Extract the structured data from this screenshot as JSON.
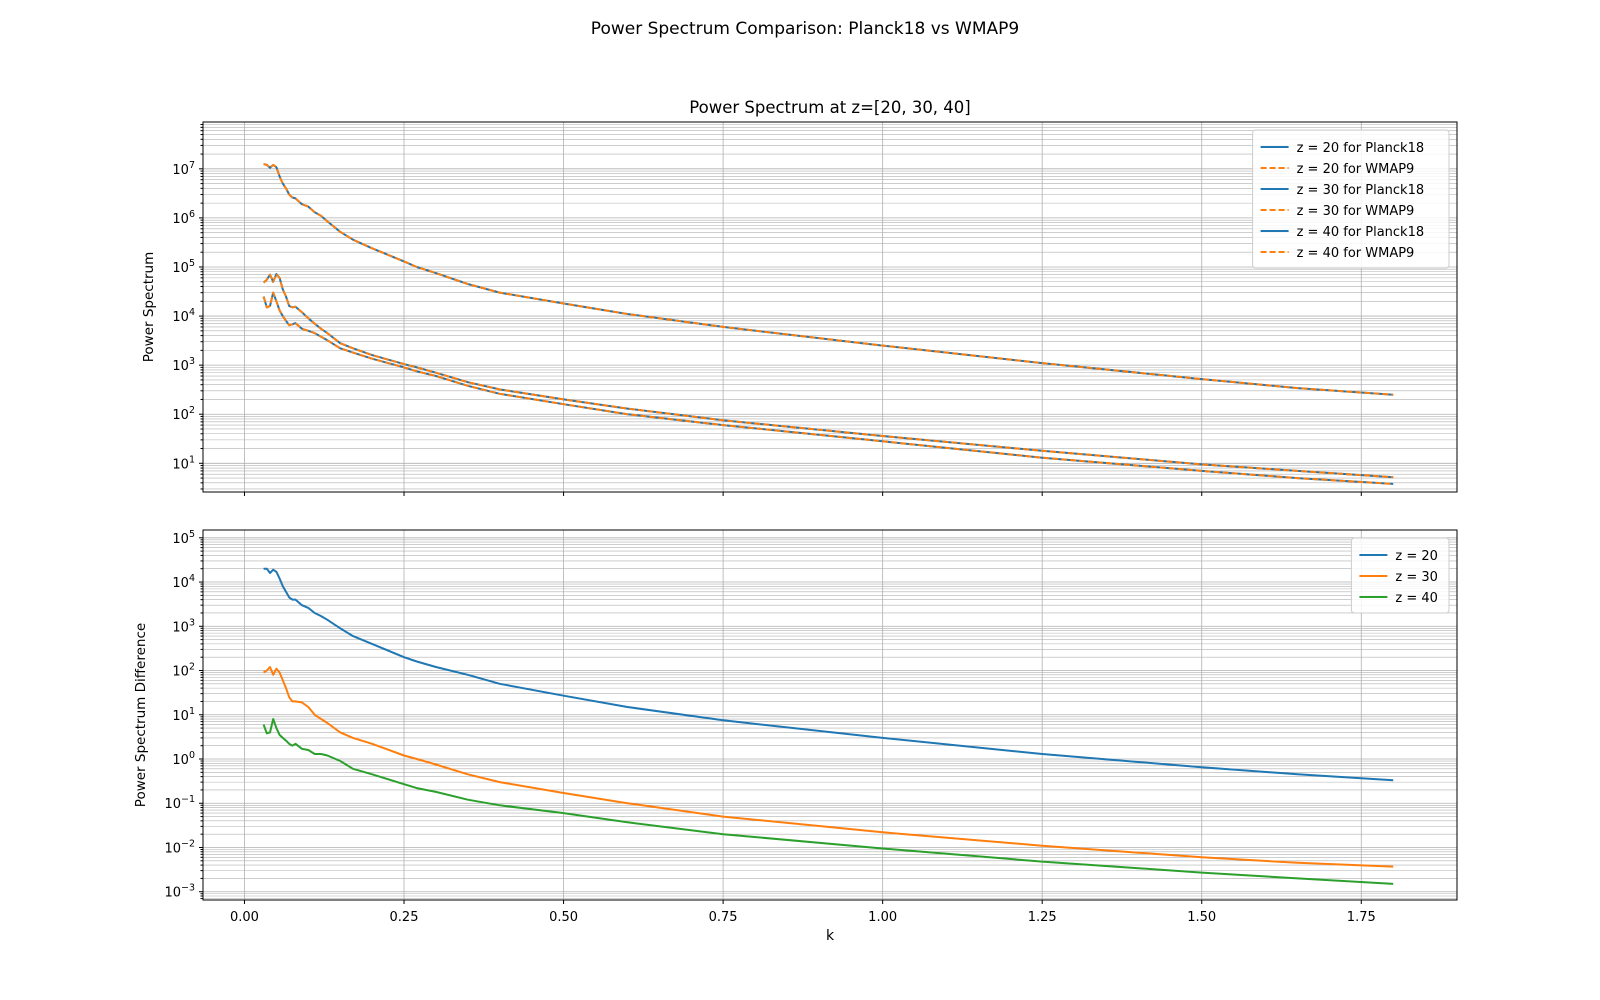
{
  "figure_title": "Power Spectrum Comparison: Planck18 vs WMAP9",
  "chart_data": [
    {
      "type": "line",
      "title": "Power Spectrum at z=[20, 30, 40]",
      "xlabel": "",
      "ylabel": "Power Spectrum",
      "yscale": "log",
      "xlim": [
        -0.065,
        1.9
      ],
      "ylim": [
        2.6,
        90000000
      ],
      "xticks": [],
      "yticks": [
        10.0,
        100.0,
        1000.0,
        10000.0,
        100000.0,
        1000000.0,
        10000000.0
      ],
      "ytick_labels": [
        {
          "base": "10",
          "exp": "1"
        },
        {
          "base": "10",
          "exp": "2"
        },
        {
          "base": "10",
          "exp": "3"
        },
        {
          "base": "10",
          "exp": "4"
        },
        {
          "base": "10",
          "exp": "5"
        },
        {
          "base": "10",
          "exp": "6"
        },
        {
          "base": "10",
          "exp": "7"
        }
      ],
      "grid": true,
      "legend_position": "top-right",
      "x": [
        0.03,
        0.035,
        0.04,
        0.045,
        0.05,
        0.055,
        0.06,
        0.065,
        0.07,
        0.075,
        0.08,
        0.09,
        0.1,
        0.11,
        0.12,
        0.13,
        0.15,
        0.17,
        0.2,
        0.25,
        0.27,
        0.3,
        0.35,
        0.4,
        0.5,
        0.6,
        0.75,
        1.0,
        1.25,
        1.5,
        1.65,
        1.8
      ],
      "series": [
        {
          "name": "z = 20 for Planck18",
          "color": "#1f77b4",
          "dash": "solid",
          "values": [
            12500000,
            12000000,
            10500000,
            12000000,
            10800000,
            7000000,
            5000000,
            4000000,
            3000000,
            2600000,
            2500000,
            1900000,
            1700000,
            1300000,
            1100000,
            850000,
            520000,
            360000,
            240000,
            130000,
            100000,
            75000,
            45000,
            30000,
            18000,
            11000,
            6000,
            2500,
            1100,
            520,
            340,
            250
          ]
        },
        {
          "name": "z = 20 for WMAP9",
          "color": "#ff7f0e",
          "dash": "dashed",
          "values": [
            12500000,
            12000000,
            10500000,
            12000000,
            10800000,
            7000000,
            5000000,
            4000000,
            3000000,
            2600000,
            2500000,
            1900000,
            1700000,
            1300000,
            1100000,
            850000,
            520000,
            360000,
            240000,
            130000,
            100000,
            75000,
            45000,
            30000,
            18000,
            11000,
            6000,
            2500,
            1100,
            520,
            340,
            250
          ]
        },
        {
          "name": "z = 30 for Planck18",
          "color": "#1f77b4",
          "dash": "solid",
          "values": [
            48000,
            55000,
            70000,
            50000,
            72000,
            60000,
            35000,
            25000,
            16000,
            15000,
            15500,
            12000,
            9000,
            7000,
            5500,
            4500,
            2800,
            2200,
            1600,
            1050,
            900,
            700,
            450,
            320,
            200,
            130,
            75,
            36,
            18,
            9.5,
            7,
            5.2
          ]
        },
        {
          "name": "z = 30 for WMAP9",
          "color": "#ff7f0e",
          "dash": "dashed",
          "values": [
            48000,
            55000,
            70000,
            50000,
            72000,
            60000,
            35000,
            25000,
            16000,
            15000,
            15500,
            12000,
            9000,
            7000,
            5500,
            4500,
            2800,
            2200,
            1600,
            1050,
            900,
            700,
            450,
            320,
            200,
            130,
            75,
            36,
            18,
            9.5,
            7,
            5.2
          ]
        },
        {
          "name": "z = 40 for Planck18",
          "color": "#1f77b4",
          "dash": "solid",
          "values": [
            25000,
            15000,
            16000,
            30000,
            20000,
            13000,
            10000,
            8000,
            6500,
            6800,
            7200,
            5500,
            5000,
            4500,
            3800,
            3200,
            2200,
            1800,
            1350,
            900,
            750,
            600,
            380,
            260,
            160,
            100,
            60,
            28,
            13,
            7,
            5,
            3.8
          ]
        },
        {
          "name": "z = 40 for WMAP9",
          "color": "#ff7f0e",
          "dash": "dashed",
          "values": [
            25000,
            15000,
            16000,
            30000,
            20000,
            13000,
            10000,
            8000,
            6500,
            6800,
            7200,
            5500,
            5000,
            4500,
            3800,
            3200,
            2200,
            1800,
            1350,
            900,
            750,
            600,
            380,
            260,
            160,
            100,
            60,
            28,
            13,
            7,
            5,
            3.8
          ]
        }
      ]
    },
    {
      "type": "line",
      "title": "",
      "xlabel": "k",
      "ylabel": "Power Spectrum Difference",
      "yscale": "log",
      "xlim": [
        -0.065,
        1.9
      ],
      "ylim": [
        0.00065,
        150000
      ],
      "xticks": [
        0.0,
        0.25,
        0.5,
        0.75,
        1.0,
        1.25,
        1.5,
        1.75
      ],
      "xtick_labels": [
        "0.00",
        "0.25",
        "0.50",
        "0.75",
        "1.00",
        "1.25",
        "1.50",
        "1.75"
      ],
      "yticks": [
        0.001,
        0.01,
        0.1,
        1,
        10,
        100,
        1000,
        10000,
        100000
      ],
      "ytick_labels": [
        {
          "base": "10",
          "exp": "−3"
        },
        {
          "base": "10",
          "exp": "−2"
        },
        {
          "base": "10",
          "exp": "−1"
        },
        {
          "base": "10",
          "exp": "0"
        },
        {
          "base": "10",
          "exp": "1"
        },
        {
          "base": "10",
          "exp": "2"
        },
        {
          "base": "10",
          "exp": "3"
        },
        {
          "base": "10",
          "exp": "4"
        },
        {
          "base": "10",
          "exp": "5"
        }
      ],
      "grid": true,
      "legend_position": "top-right",
      "x": [
        0.03,
        0.035,
        0.04,
        0.045,
        0.05,
        0.055,
        0.06,
        0.065,
        0.07,
        0.075,
        0.08,
        0.09,
        0.1,
        0.11,
        0.12,
        0.13,
        0.15,
        0.17,
        0.2,
        0.25,
        0.27,
        0.3,
        0.35,
        0.4,
        0.5,
        0.6,
        0.75,
        1.0,
        1.25,
        1.5,
        1.65,
        1.8
      ],
      "series": [
        {
          "name": "z = 20",
          "color": "#1f77b4",
          "dash": "solid",
          "values": [
            20000,
            20000,
            16000,
            19000,
            17000,
            12000,
            8000,
            6000,
            4500,
            4000,
            4000,
            3000,
            2600,
            2000,
            1700,
            1400,
            900,
            600,
            400,
            200,
            160,
            120,
            80,
            50,
            27,
            15,
            7.5,
            3,
            1.3,
            0.65,
            0.45,
            0.33
          ]
        },
        {
          "name": "z = 30",
          "color": "#ff7f0e",
          "dash": "solid",
          "values": [
            90,
            100,
            120,
            80,
            110,
            90,
            60,
            40,
            25,
            20,
            20,
            19,
            15,
            10,
            8,
            6.5,
            4,
            3,
            2.2,
            1.2,
            1,
            0.75,
            0.45,
            0.3,
            0.17,
            0.1,
            0.05,
            0.022,
            0.011,
            0.006,
            0.0045,
            0.0037
          ]
        },
        {
          "name": "z = 40",
          "color": "#2ca02c",
          "dash": "solid",
          "values": [
            6,
            3.8,
            4,
            8,
            5,
            3.5,
            3,
            2.6,
            2.2,
            2,
            2.2,
            1.7,
            1.6,
            1.3,
            1.3,
            1.2,
            0.9,
            0.6,
            0.45,
            0.27,
            0.22,
            0.18,
            0.12,
            0.09,
            0.06,
            0.037,
            0.02,
            0.0095,
            0.0048,
            0.0027,
            0.002,
            0.0015
          ]
        }
      ]
    }
  ]
}
